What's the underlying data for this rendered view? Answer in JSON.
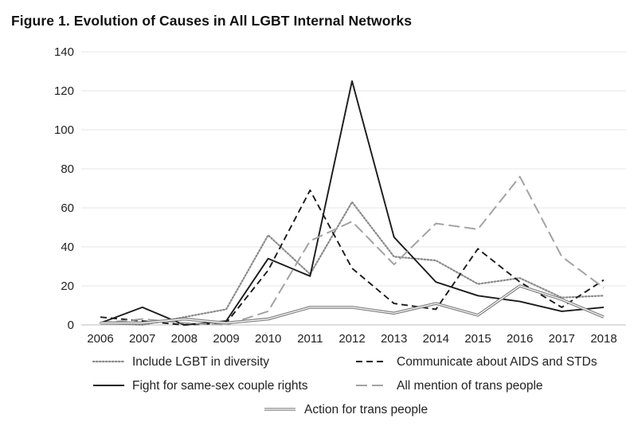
{
  "figure": {
    "title": "Figure 1.  Evolution of Causes in All LGBT Internal Networks"
  },
  "chart_data": {
    "type": "line",
    "title": "Figure 1.  Evolution of Causes in All LGBT Internal Networks",
    "xlabel": "",
    "ylabel": "",
    "x": [
      "2006",
      "2007",
      "2008",
      "2009",
      "2010",
      "2011",
      "2012",
      "2013",
      "2014",
      "2015",
      "2016",
      "2017",
      "2018"
    ],
    "ylim": [
      0,
      140
    ],
    "yticks": [
      0,
      20,
      40,
      60,
      80,
      100,
      120,
      140
    ],
    "grid": "horizontal",
    "legend_position": "bottom",
    "series": [
      {
        "name": "Include LGBT in diversity",
        "style": "dotted",
        "color": "#8a8a8a",
        "values": [
          1,
          0,
          4,
          8,
          46,
          26,
          63,
          35,
          33,
          21,
          24,
          14,
          15
        ]
      },
      {
        "name": "Communicate about AIDS and STDs",
        "style": "dashed",
        "color": "#1a1a1a",
        "values": [
          4,
          2,
          0,
          1,
          28,
          69,
          29,
          11,
          8,
          39,
          22,
          9,
          23
        ]
      },
      {
        "name": "Fight for same-sex couple rights",
        "style": "solid",
        "color": "#1a1a1a",
        "values": [
          1,
          9,
          0,
          2,
          34,
          25,
          125,
          45,
          22,
          15,
          12,
          7,
          9
        ]
      },
      {
        "name": "All mention of trans people",
        "style": "longdash",
        "color": "#a3a3a3",
        "values": [
          1,
          3,
          1,
          0,
          7,
          43,
          53,
          31,
          52,
          49,
          76,
          35,
          19
        ]
      },
      {
        "name": "Action for trans people",
        "style": "double",
        "color": "#808080",
        "values": [
          1,
          1,
          3,
          1,
          3,
          9,
          9,
          6,
          11,
          5,
          20,
          13,
          4
        ]
      }
    ]
  }
}
